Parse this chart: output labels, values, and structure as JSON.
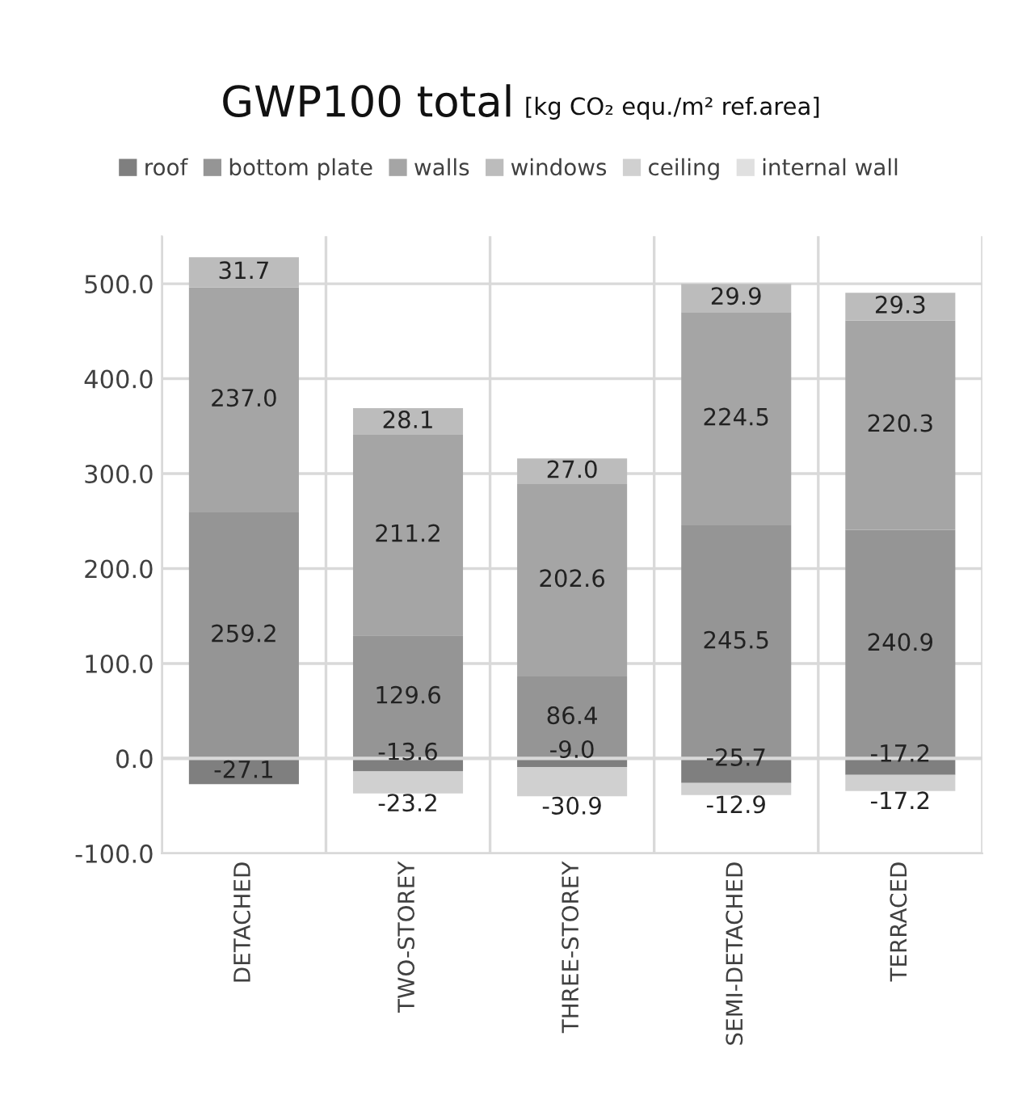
{
  "chart_data": {
    "type": "bar",
    "stacked": true,
    "title": "GWP100 total",
    "subtitle": "[kg CO₂ equ./m² ref.area]",
    "categories": [
      "DETACHED",
      "TWO-STOREY",
      "THREE-STOREY",
      "SEMI-DETACHED",
      "TERRACED"
    ],
    "series": [
      {
        "name": "roof",
        "color": "#7f7f7f",
        "values": [
          -27.1,
          -13.6,
          -9.0,
          -25.7,
          -17.2
        ],
        "value_labels": [
          "-27.1",
          "-13.6",
          "-9.0",
          "-25.7",
          "-17.2"
        ]
      },
      {
        "name": "bottom plate",
        "color": "#959595",
        "values": [
          259.2,
          129.6,
          86.4,
          245.5,
          240.9
        ],
        "value_labels": [
          "259.2",
          "129.6",
          "86.4",
          "245.5",
          "240.9"
        ]
      },
      {
        "name": "walls",
        "color": "#a5a5a5",
        "values": [
          237.0,
          211.2,
          202.6,
          224.5,
          220.3
        ],
        "value_labels": [
          "237.0",
          "211.2",
          "202.6",
          "224.5",
          "220.3"
        ]
      },
      {
        "name": "windows",
        "color": "#bcbcbc",
        "values": [
          31.7,
          28.1,
          27.0,
          29.9,
          29.3
        ],
        "value_labels": [
          "31.7",
          "28.1",
          "27.0",
          "29.9",
          "29.3"
        ]
      },
      {
        "name": "ceiling",
        "color": "#d0d0d0",
        "values": [
          null,
          -23.2,
          -30.9,
          -12.9,
          -17.2
        ],
        "value_labels": [
          null,
          "-23.2",
          "-30.9",
          "-12.9",
          "-17.2"
        ]
      },
      {
        "name": "internal wall",
        "color": "#e0e0e0",
        "values": [
          null,
          null,
          null,
          null,
          null
        ]
      }
    ],
    "ylim": [
      -100,
      550
    ],
    "yticks": [
      {
        "value": -100,
        "label": "-100.0"
      },
      {
        "value": 0,
        "label": "0.0"
      },
      {
        "value": 100,
        "label": "100.0"
      },
      {
        "value": 200,
        "label": "200.0"
      },
      {
        "value": 300,
        "label": "300.0"
      },
      {
        "value": 400,
        "label": "400.0"
      },
      {
        "value": 500,
        "label": "500.0"
      }
    ],
    "grid": true,
    "legend": "top"
  }
}
